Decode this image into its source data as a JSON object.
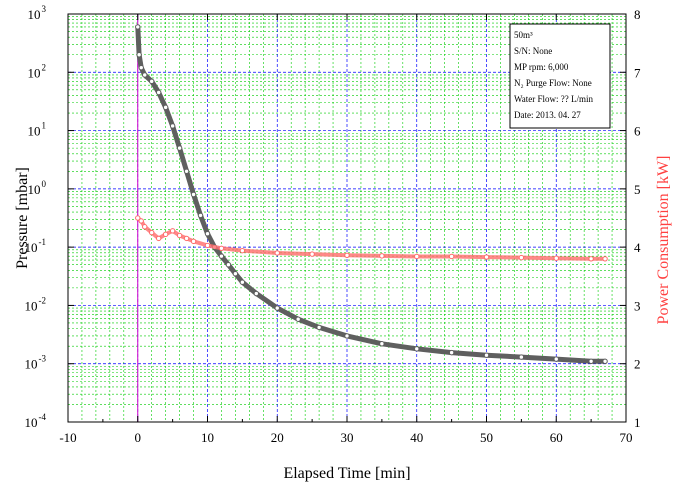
{
  "chart_data": {
    "type": "line",
    "title": "",
    "xlabel": "Elapsed Time [min]",
    "ylabel_left": "Pressure [mbar]",
    "ylabel_right": "Power Consumption [kW]",
    "xlim": [
      -10,
      70
    ],
    "ylim_left": [
      0.0001,
      1000
    ],
    "ylim_right": [
      1,
      8
    ],
    "yscale_left": "log",
    "x_ticks": [
      "-10",
      "0",
      "10",
      "20",
      "30",
      "40",
      "50",
      "60",
      "70"
    ],
    "y_left_ticks": [
      {
        "base": "10",
        "exp": "-4"
      },
      {
        "base": "10",
        "exp": "-3"
      },
      {
        "base": "10",
        "exp": "-2"
      },
      {
        "base": "10",
        "exp": "-1"
      },
      {
        "base": "10",
        "exp": "0"
      },
      {
        "base": "10",
        "exp": "1"
      },
      {
        "base": "10",
        "exp": "2"
      },
      {
        "base": "10",
        "exp": "3"
      }
    ],
    "y_right_ticks": [
      "1",
      "2",
      "3",
      "4",
      "5",
      "6",
      "7",
      "8"
    ],
    "grid": true,
    "legend_box": {
      "placement": "top-right",
      "lines": [
        "50m³",
        "S/N: None",
        "MP rpm: 6,000",
        "N₂ Purge Flow: None",
        "Water Flow: ?? L/min",
        "Date: 2013. 04. 27"
      ]
    },
    "colors": {
      "pressure": "#5f5f5f",
      "power": "#ff6b6b",
      "grid_major": "#0000ff",
      "grid_minor": "#00cc00",
      "zero_line": "#cc00cc",
      "right_axis_label": "#ff4040"
    },
    "series": [
      {
        "axis": "left",
        "x": [
          0,
          0.2,
          0.5,
          1,
          2,
          3,
          4,
          5,
          6,
          7,
          8,
          9,
          10,
          11,
          12,
          13,
          14,
          15,
          17,
          20,
          23,
          26,
          30,
          35,
          40,
          45,
          50,
          55,
          60,
          65,
          67
        ],
        "values": [
          600,
          200,
          120,
          90,
          70,
          45,
          25,
          12,
          5,
          2,
          0.8,
          0.35,
          0.17,
          0.1,
          0.07,
          0.05,
          0.035,
          0.025,
          0.016,
          0.009,
          0.0058,
          0.0042,
          0.003,
          0.0022,
          0.0018,
          0.00155,
          0.0014,
          0.0013,
          0.0012,
          0.0011,
          0.0011
        ]
      },
      {
        "axis": "right",
        "x": [
          0,
          0.5,
          1,
          2,
          3,
          4,
          5,
          6,
          7,
          8,
          10,
          12,
          15,
          20,
          25,
          30,
          35,
          40,
          45,
          50,
          55,
          60,
          65,
          67
        ],
        "values": [
          4.5,
          4.45,
          4.35,
          4.25,
          4.15,
          4.22,
          4.28,
          4.2,
          4.15,
          4.1,
          4.03,
          3.98,
          3.94,
          3.9,
          3.88,
          3.86,
          3.85,
          3.84,
          3.84,
          3.83,
          3.82,
          3.81,
          3.8,
          3.8
        ]
      }
    ]
  }
}
